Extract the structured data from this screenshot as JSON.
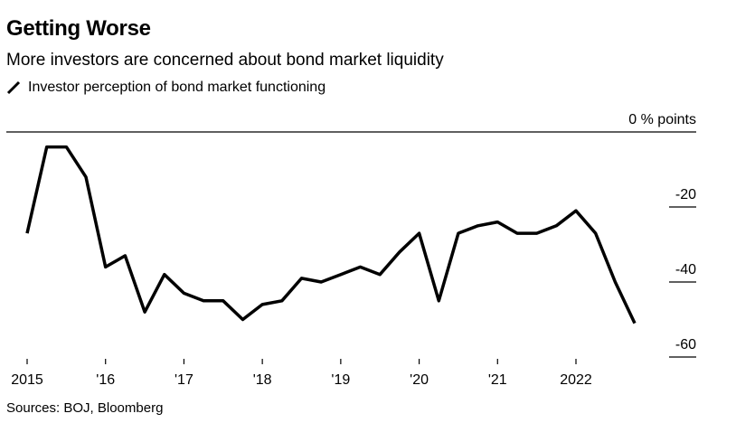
{
  "header": {
    "title": "Getting Worse",
    "subtitle": "More investors are concerned about bond market liquidity"
  },
  "footer": {
    "source": "Sources: BOJ, Bloomberg"
  },
  "colors": {
    "line": "#000000",
    "rule": "#000000"
  },
  "chart_data": {
    "type": "line",
    "title": "Getting Worse",
    "subtitle": "More investors are concerned about bond market liquidity",
    "series": [
      {
        "name": "Investor perception of bond market functioning",
        "x": [
          2015.0,
          2015.25,
          2015.5,
          2015.75,
          2016.0,
          2016.25,
          2016.5,
          2016.75,
          2017.0,
          2017.25,
          2017.5,
          2017.75,
          2018.0,
          2018.25,
          2018.5,
          2018.75,
          2019.0,
          2019.25,
          2019.5,
          2019.75,
          2020.0,
          2020.25,
          2020.5,
          2020.75,
          2021.0,
          2021.25,
          2021.5,
          2021.75,
          2022.0,
          2022.25,
          2022.5,
          2022.75,
          2023.0
        ],
        "values": [
          -27,
          -4,
          -4,
          -12,
          -36,
          -33,
          -48,
          -38,
          -43,
          -45,
          -45,
          -50,
          -46,
          -45,
          -39,
          -40,
          -38,
          -36,
          -38,
          -32,
          -27,
          -45,
          -27,
          -25,
          -24,
          -27,
          -27,
          -25,
          -21,
          -27,
          -40,
          -51,
          null
        ]
      }
    ],
    "xticks": [
      {
        "value": 2015,
        "label": "2015"
      },
      {
        "value": 2016,
        "label": "'16"
      },
      {
        "value": 2017,
        "label": "'17"
      },
      {
        "value": 2018,
        "label": "'18"
      },
      {
        "value": 2019,
        "label": "'19"
      },
      {
        "value": 2020,
        "label": "'20"
      },
      {
        "value": 2021,
        "label": "'21"
      },
      {
        "value": 2022,
        "label": "2022"
      }
    ],
    "yticks": [
      {
        "value": 0,
        "label": "0 % points"
      },
      {
        "value": -20,
        "label": "-20"
      },
      {
        "value": -40,
        "label": "-40"
      },
      {
        "value": -60,
        "label": "-60"
      }
    ],
    "xlim": [
      2014.75,
      2023.3
    ],
    "ylim": [
      -60,
      0
    ],
    "xlabel": "",
    "ylabel": "% points",
    "grid": false,
    "legend": "top-left"
  }
}
